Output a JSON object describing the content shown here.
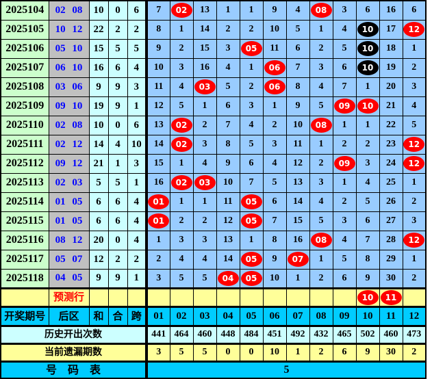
{
  "header": {
    "period": "开奖期号",
    "zone": "后区",
    "sum": "和",
    "combo": "合",
    "span": "跨",
    "numbers": [
      "01",
      "02",
      "03",
      "04",
      "05",
      "06",
      "07",
      "08",
      "09",
      "10",
      "11",
      "12"
    ]
  },
  "rows": [
    {
      "period": "2025104",
      "zone": "02 08",
      "sum": "10",
      "combo": "0",
      "span": "6",
      "cells": [
        "7",
        {
          "b": "02",
          "c": "red"
        },
        "13",
        "1",
        "1",
        "9",
        "4",
        {
          "b": "08",
          "c": "red"
        },
        "3",
        "6",
        "16",
        "6"
      ]
    },
    {
      "period": "2025105",
      "zone": "10 12",
      "sum": "22",
      "combo": "2",
      "span": "2",
      "cells": [
        "8",
        "1",
        "14",
        "2",
        "2",
        "10",
        "5",
        "1",
        "4",
        {
          "b": "10",
          "c": "black"
        },
        "17",
        {
          "b": "12",
          "c": "red"
        }
      ]
    },
    {
      "period": "2025106",
      "zone": "05 10",
      "sum": "15",
      "combo": "5",
      "span": "5",
      "cells": [
        "9",
        "2",
        "15",
        "3",
        {
          "b": "05",
          "c": "red"
        },
        "11",
        "6",
        "2",
        "5",
        {
          "b": "10",
          "c": "black"
        },
        "18",
        "1"
      ]
    },
    {
      "period": "2025107",
      "zone": "06 10",
      "sum": "16",
      "combo": "6",
      "span": "4",
      "cells": [
        "10",
        "3",
        "16",
        "4",
        "1",
        {
          "b": "06",
          "c": "red"
        },
        "7",
        "3",
        "6",
        {
          "b": "10",
          "c": "black"
        },
        "19",
        "2"
      ]
    },
    {
      "period": "2025108",
      "zone": "03 06",
      "sum": "9",
      "combo": "9",
      "span": "3",
      "cells": [
        "11",
        "4",
        {
          "b": "03",
          "c": "red"
        },
        "5",
        "2",
        {
          "b": "06",
          "c": "red"
        },
        "8",
        "4",
        "7",
        "1",
        "20",
        "3"
      ]
    },
    {
      "period": "2025109",
      "zone": "09 10",
      "sum": "19",
      "combo": "9",
      "span": "1",
      "cells": [
        "12",
        "5",
        "1",
        "6",
        "3",
        "1",
        "9",
        "5",
        {
          "b": "09",
          "c": "red"
        },
        {
          "b": "10",
          "c": "red"
        },
        "21",
        "4"
      ]
    },
    {
      "period": "2025110",
      "zone": "02 08",
      "sum": "10",
      "combo": "0",
      "span": "6",
      "cells": [
        "13",
        {
          "b": "02",
          "c": "red"
        },
        "2",
        "7",
        "4",
        "2",
        "10",
        {
          "b": "08",
          "c": "red"
        },
        "1",
        "1",
        "22",
        "5"
      ]
    },
    {
      "period": "2025111",
      "zone": "02 12",
      "sum": "14",
      "combo": "4",
      "span": "10",
      "cells": [
        "14",
        {
          "b": "02",
          "c": "red"
        },
        "3",
        "8",
        "5",
        "3",
        "11",
        "1",
        "2",
        "2",
        "23",
        {
          "b": "12",
          "c": "red"
        }
      ]
    },
    {
      "period": "2025112",
      "zone": "09 12",
      "sum": "21",
      "combo": "1",
      "span": "3",
      "cells": [
        "15",
        "1",
        "4",
        "9",
        "6",
        "4",
        "12",
        "2",
        {
          "b": "09",
          "c": "red"
        },
        "3",
        "24",
        {
          "b": "12",
          "c": "red"
        }
      ]
    },
    {
      "period": "2025113",
      "zone": "02 03",
      "sum": "5",
      "combo": "5",
      "span": "1",
      "cells": [
        "16",
        {
          "b": "02",
          "c": "red"
        },
        {
          "b": "03",
          "c": "red"
        },
        "10",
        "7",
        "5",
        "13",
        "3",
        "1",
        "4",
        "25",
        "1"
      ]
    },
    {
      "period": "2025114",
      "zone": "01 05",
      "sum": "6",
      "combo": "6",
      "span": "4",
      "cells": [
        {
          "b": "01",
          "c": "red"
        },
        "1",
        "1",
        "11",
        {
          "b": "05",
          "c": "red"
        },
        "6",
        "14",
        "4",
        "2",
        "5",
        "26",
        "2"
      ]
    },
    {
      "period": "2025115",
      "zone": "01 05",
      "sum": "6",
      "combo": "6",
      "span": "4",
      "cells": [
        {
          "b": "01",
          "c": "red"
        },
        "2",
        "2",
        "12",
        {
          "b": "05",
          "c": "red"
        },
        "7",
        "15",
        "5",
        "3",
        "6",
        "27",
        "3"
      ]
    },
    {
      "period": "2025116",
      "zone": "08 12",
      "sum": "20",
      "combo": "0",
      "span": "4",
      "cells": [
        "1",
        "3",
        "3",
        "13",
        "1",
        "8",
        "16",
        {
          "b": "08",
          "c": "red"
        },
        "4",
        "7",
        "28",
        {
          "b": "12",
          "c": "red"
        }
      ]
    },
    {
      "period": "2025117",
      "zone": "05 07",
      "sum": "12",
      "combo": "2",
      "span": "2",
      "cells": [
        "2",
        "4",
        "4",
        "14",
        {
          "b": "05",
          "c": "red"
        },
        "9",
        {
          "b": "07",
          "c": "red"
        },
        "1",
        "5",
        "8",
        "29",
        "1"
      ]
    },
    {
      "period": "2025118",
      "zone": "04 05",
      "sum": "9",
      "combo": "9",
      "span": "1",
      "cells": [
        "3",
        "5",
        "5",
        {
          "b": "04",
          "c": "red"
        },
        {
          "b": "05",
          "c": "red"
        },
        "10",
        "1",
        "2",
        "6",
        "9",
        "30",
        "2"
      ]
    }
  ],
  "forecast": {
    "label": "预测行",
    "cells": [
      null,
      null,
      null,
      null,
      null,
      null,
      null,
      null,
      null,
      {
        "b": "10",
        "c": "red"
      },
      {
        "b": "11",
        "c": "red"
      },
      null
    ]
  },
  "history": {
    "label": "历史开出次数",
    "values": [
      "441",
      "464",
      "460",
      "448",
      "484",
      "451",
      "492",
      "432",
      "465",
      "502",
      "460",
      "473"
    ]
  },
  "miss": {
    "label": "当前遗漏期数",
    "values": [
      "3",
      "5",
      "5",
      "0",
      "0",
      "10",
      "1",
      "2",
      "6",
      "9",
      "30",
      "2"
    ]
  },
  "number_table": {
    "label": "号　码　表",
    "value": "5"
  },
  "colors": {
    "period_bg": "#ccffcc",
    "zone_bg": "#c0c0c0",
    "zone_text": "#0000ff",
    "stat_bg": "#ccffff",
    "grid_bg": "#99ccff",
    "forecast_bg": "#ffff99",
    "forecast_text": "#ff0000",
    "header_bg": "#00ccff",
    "history_bg": "#ccffff",
    "miss_bg": "#ffff99",
    "numtable_bg": "#00ccff",
    "ball_red": "#ff0000",
    "ball_black": "#000000"
  },
  "chart_data": {
    "type": "table",
    "title": "大乐透后区走势图",
    "categories": [
      "01",
      "02",
      "03",
      "04",
      "05",
      "06",
      "07",
      "08",
      "09",
      "10",
      "11",
      "12"
    ],
    "periods": [
      "2025104",
      "2025105",
      "2025106",
      "2025107",
      "2025108",
      "2025109",
      "2025110",
      "2025111",
      "2025112",
      "2025113",
      "2025114",
      "2025115",
      "2025116",
      "2025117",
      "2025118"
    ],
    "winning_numbers": [
      [
        "02",
        "08"
      ],
      [
        "10",
        "12"
      ],
      [
        "05",
        "10"
      ],
      [
        "06",
        "10"
      ],
      [
        "03",
        "06"
      ],
      [
        "09",
        "10"
      ],
      [
        "02",
        "08"
      ],
      [
        "02",
        "12"
      ],
      [
        "09",
        "12"
      ],
      [
        "02",
        "03"
      ],
      [
        "01",
        "05"
      ],
      [
        "01",
        "05"
      ],
      [
        "08",
        "12"
      ],
      [
        "05",
        "07"
      ],
      [
        "04",
        "05"
      ]
    ],
    "sum_combo_span": [
      [
        10,
        0,
        6
      ],
      [
        22,
        2,
        2
      ],
      [
        15,
        5,
        5
      ],
      [
        16,
        6,
        4
      ],
      [
        9,
        9,
        3
      ],
      [
        19,
        9,
        1
      ],
      [
        10,
        0,
        6
      ],
      [
        14,
        4,
        10
      ],
      [
        21,
        1,
        3
      ],
      [
        5,
        5,
        1
      ],
      [
        6,
        6,
        4
      ],
      [
        6,
        6,
        4
      ],
      [
        20,
        0,
        4
      ],
      [
        12,
        2,
        2
      ],
      [
        9,
        9,
        1
      ]
    ],
    "forecast_numbers": [
      "10",
      "11"
    ],
    "history_counts": [
      441,
      464,
      460,
      448,
      484,
      451,
      492,
      432,
      465,
      502,
      460,
      473
    ],
    "current_misses": [
      3,
      5,
      5,
      0,
      0,
      10,
      1,
      2,
      6,
      9,
      30,
      2
    ],
    "number_table_value": "5"
  }
}
